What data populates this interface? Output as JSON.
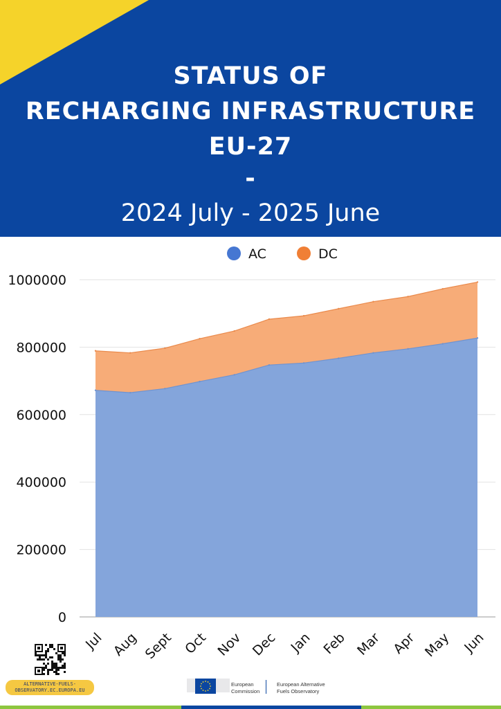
{
  "header": {
    "title_lines": [
      "STATUS OF",
      "RECHARGING INFRASTRUCTURE",
      "EU-27",
      "-"
    ],
    "subtitle": "2024 July - 2025 June"
  },
  "colors": {
    "header_bg": "#0b46a0",
    "accent_yellow": "#f5d32a",
    "ac_fill": "#84a5db",
    "ac_legend": "#4677d2",
    "dc_fill": "#f7ac78",
    "dc_legend": "#f07f35"
  },
  "chart_data": {
    "type": "area",
    "stacked": true,
    "title": "",
    "xlabel": "",
    "ylabel": "",
    "categories": [
      "Jul",
      "Aug",
      "Sept",
      "Oct",
      "Nov",
      "Dec",
      "Jan",
      "Feb",
      "Mar",
      "Apr",
      "May",
      "Jun"
    ],
    "series": [
      {
        "name": "AC",
        "values": [
          672000,
          665000,
          677000,
          698000,
          718000,
          747000,
          753000,
          767000,
          783000,
          795000,
          810000,
          827000
        ]
      },
      {
        "name": "DC",
        "values": [
          117000,
          118000,
          120000,
          127000,
          130000,
          136000,
          140000,
          147000,
          152000,
          155000,
          163000,
          166000
        ]
      }
    ],
    "ylim": [
      0,
      1000000
    ],
    "yticks": [
      0,
      200000,
      400000,
      600000,
      800000,
      1000000
    ],
    "legend_position": "top-center",
    "grid": true
  },
  "footer": {
    "url_label": "ALTERNATIVE-FUELS-\nOBSERVATORY.EC.EUROPA.EU",
    "ec_name": "European\nCommission",
    "afo_name": "European Alternative\nFuels Observatory",
    "bar_colors": [
      "#8dc63f",
      "#0b46a0",
      "#8dc63f"
    ]
  }
}
